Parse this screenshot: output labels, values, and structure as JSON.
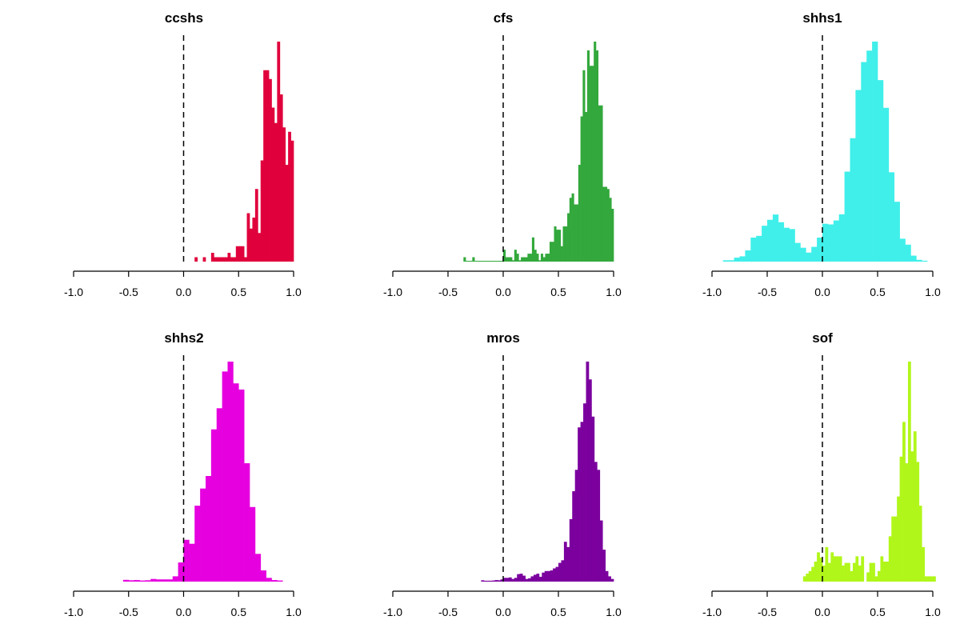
{
  "chart_data": [
    {
      "type": "bar",
      "subtype": "histogram",
      "title": "ccshs",
      "color": "#E0003C",
      "bin_start": 0.1,
      "bin_width": 0.025,
      "values": [
        2,
        0,
        0,
        2,
        0,
        0,
        4,
        2,
        2,
        2,
        2,
        2,
        4,
        2,
        2,
        7,
        7,
        7,
        2,
        22,
        15,
        20,
        33,
        13,
        46,
        87,
        87,
        83,
        70,
        63,
        100,
        76,
        61,
        44,
        59,
        55
      ],
      "xlim": [
        -1,
        1
      ],
      "xticks": [
        "-1.0",
        "-0.5",
        "0.0",
        "0.5",
        "1.0"
      ],
      "xtick_values": [
        -1,
        -0.5,
        0,
        0.5,
        1
      ],
      "reference_line": 0,
      "y_units": "relative frequency (% of max bin)"
    },
    {
      "type": "bar",
      "subtype": "histogram",
      "title": "cfs",
      "color": "#33A83C",
      "bin_start": -0.36,
      "bin_width": 0.02,
      "values": [
        2,
        0.1,
        0.1,
        0.1,
        2,
        0.1,
        0.1,
        0.1,
        0.1,
        0.1,
        0.1,
        0.1,
        0.1,
        0.1,
        0.1,
        0.1,
        0.1,
        0.1,
        5.4,
        2,
        2,
        2,
        0.6,
        5.4,
        3.6,
        0.6,
        2,
        2,
        2,
        3.6,
        3.6,
        11,
        5.4,
        3.6,
        0.6,
        3.6,
        2,
        3.6,
        3.6,
        9,
        9,
        16,
        14.5,
        14.5,
        7,
        16,
        16,
        22,
        29,
        31,
        26,
        26,
        44,
        66,
        87,
        68,
        96,
        89,
        89,
        100,
        96,
        71,
        71,
        34,
        34,
        33,
        29,
        24
      ],
      "xlim": [
        -1,
        1
      ],
      "xticks": [
        "-1.0",
        "-0.5",
        "0.0",
        "0.5",
        "1.0"
      ],
      "xtick_values": [
        -1,
        -0.5,
        0,
        0.5,
        1
      ],
      "reference_line": 0,
      "y_units": "relative frequency (% of max bin)"
    },
    {
      "type": "bar",
      "subtype": "histogram",
      "title": "shhs1",
      "color": "#40EFEA",
      "bin_start": -0.9,
      "bin_width": 0.05,
      "values": [
        0.6,
        0.6,
        1.8,
        2.4,
        5.1,
        10.9,
        11.7,
        16.3,
        19,
        21.4,
        17.9,
        15.4,
        14.8,
        8.5,
        6.3,
        4.1,
        6.7,
        10.9,
        17.2,
        16.9,
        18.7,
        21.5,
        40.9,
        56.1,
        78,
        90.7,
        95.9,
        100,
        82.5,
        69.9,
        40.6,
        27.2,
        10.4,
        7.7,
        2.7,
        0.8,
        0.4
      ],
      "xlim": [
        -1,
        1
      ],
      "xticks": [
        "-1.0",
        "-0.5",
        "0.0",
        "0.5",
        "1.0"
      ],
      "xtick_values": [
        -1,
        -0.5,
        0,
        0.5,
        1
      ],
      "reference_line": 0,
      "y_units": "relative frequency (% of max bin)"
    },
    {
      "type": "bar",
      "subtype": "histogram",
      "title": "shhs2",
      "color": "#E600DF",
      "bin_start": -0.55,
      "bin_width": 0.05,
      "values": [
        0.8,
        0.6,
        0.7,
        0.5,
        0.6,
        1.2,
        1,
        1,
        1,
        2.4,
        8.7,
        19,
        17.2,
        34.5,
        42.3,
        48,
        69.2,
        78.8,
        95.5,
        100,
        90.1,
        87.3,
        53.8,
        33.9,
        12.6,
        5.1,
        1.7,
        0.7,
        0.5
      ],
      "xlim": [
        -1,
        1
      ],
      "xticks": [
        "-1.0",
        "-0.5",
        "0.0",
        "0.5",
        "1.0"
      ],
      "xtick_values": [
        -1,
        -0.5,
        0,
        0.5,
        1
      ],
      "reference_line": 0,
      "y_units": "relative frequency (% of max bin)"
    },
    {
      "type": "bar",
      "subtype": "histogram",
      "title": "mros",
      "color": "#7B009E",
      "bin_start": -0.2,
      "bin_width": 0.025,
      "values": [
        0.6,
        0.4,
        0.4,
        0.4,
        0.5,
        0.7,
        0.6,
        1,
        1.7,
        1.7,
        1.9,
        1.2,
        1.7,
        3.4,
        3.6,
        2.7,
        1.2,
        1.5,
        2.4,
        3.1,
        3.6,
        2.2,
        4.1,
        4.8,
        4.8,
        5.1,
        6,
        6.7,
        8.5,
        9.7,
        18.1,
        15.7,
        28.4,
        41.1,
        50.8,
        70.1,
        72.6,
        81,
        100,
        91.9,
        75,
        54.4,
        50.8,
        27.8,
        14.5,
        4.8,
        2.4,
        1.2
      ],
      "xlim": [
        -1,
        1
      ],
      "xticks": [
        "-1.0",
        "-0.5",
        "0.0",
        "0.5",
        "1.0"
      ],
      "xtick_values": [
        -1,
        -0.5,
        0,
        0.5,
        1
      ],
      "reference_line": 0,
      "y_units": "relative frequency (% of max bin)"
    },
    {
      "type": "bar",
      "subtype": "histogram",
      "title": "sof",
      "color": "#B1F61A",
      "bin_start": -0.175,
      "bin_width": 0.025,
      "values": [
        2.4,
        3.6,
        4.8,
        6.7,
        9.1,
        13.3,
        10.9,
        7.3,
        15.7,
        8.5,
        13.3,
        11.5,
        11.5,
        11.5,
        7.3,
        8.5,
        8.5,
        4.8,
        8.5,
        11.5,
        7.3,
        11.5,
        0,
        4.2,
        8.5,
        8.5,
        2.4,
        4.8,
        11.5,
        9.1,
        9.1,
        20.6,
        29.6,
        29.6,
        38.7,
        56.8,
        72.6,
        53.8,
        100,
        59.2,
        68.3,
        54.4,
        34.5,
        15.7,
        2.4,
        2.4,
        2.4,
        2.4
      ],
      "xlim": [
        -1,
        1
      ],
      "xticks": [
        "-1.0",
        "-0.5",
        "0.0",
        "0.5",
        "1.0"
      ],
      "xtick_values": [
        -1,
        -0.5,
        0,
        0.5,
        1
      ],
      "reference_line": 0,
      "y_units": "relative frequency (% of max bin)"
    }
  ]
}
